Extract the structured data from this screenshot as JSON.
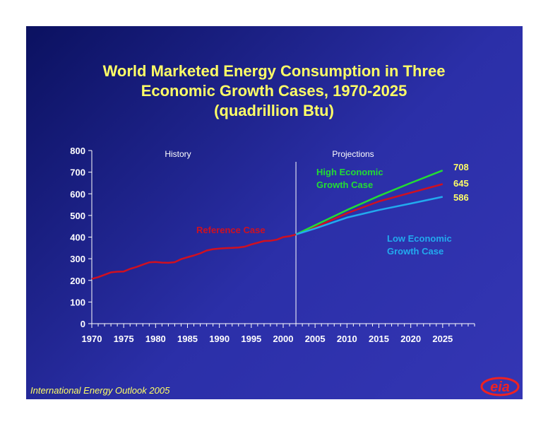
{
  "chart_data": {
    "type": "line",
    "title_lines": [
      "World Marketed Energy Consumption in Three",
      "Economic Growth Cases, 1970-2025",
      "(quadrillion Btu)"
    ],
    "xlabel": "",
    "ylabel": "",
    "xlim": [
      1970,
      2030
    ],
    "ylim": [
      0,
      800
    ],
    "x_ticks": [
      1970,
      1975,
      1980,
      1985,
      1990,
      1995,
      2000,
      2005,
      2010,
      2015,
      2020,
      2025
    ],
    "y_ticks": [
      0,
      100,
      200,
      300,
      400,
      500,
      600,
      700,
      800
    ],
    "grid": false,
    "divider_year": 2002,
    "region_labels": {
      "history": "History",
      "projections": "Projections"
    },
    "series": [
      {
        "name": "Reference Case",
        "color": "#d01020",
        "x": [
          1970,
          1971,
          1972,
          1973,
          1974,
          1975,
          1976,
          1977,
          1978,
          1979,
          1980,
          1981,
          1982,
          1983,
          1984,
          1985,
          1986,
          1987,
          1988,
          1989,
          1990,
          1991,
          1992,
          1993,
          1994,
          1995,
          1996,
          1997,
          1998,
          1999,
          2000,
          2001,
          2002,
          2005,
          2010,
          2015,
          2020,
          2025
        ],
        "values": [
          207,
          215,
          226,
          237,
          240,
          241,
          253,
          262,
          273,
          283,
          285,
          282,
          281,
          284,
          298,
          307,
          315,
          325,
          338,
          344,
          347,
          349,
          350,
          352,
          356,
          366,
          374,
          382,
          383,
          388,
          400,
          404,
          412,
          445,
          510,
          565,
          605,
          645
        ]
      },
      {
        "name": "High Economic Growth Case",
        "color": "#22dd33",
        "x": [
          2002,
          2005,
          2010,
          2015,
          2020,
          2025
        ],
        "values": [
          412,
          455,
          525,
          590,
          650,
          708
        ]
      },
      {
        "name": "Low Economic Growth Case",
        "color": "#22aaee",
        "x": [
          2002,
          2005,
          2010,
          2015,
          2020,
          2025
        ],
        "values": [
          412,
          440,
          490,
          525,
          555,
          586
        ]
      }
    ],
    "annotations": [
      {
        "series": "Reference Case",
        "lines": [
          "Reference Case"
        ],
        "color": "#d01020"
      },
      {
        "series": "High Economic Growth Case",
        "lines": [
          "High Economic",
          "Growth Case"
        ],
        "color": "#22dd33"
      },
      {
        "series": "Low Economic Growth Case",
        "lines": [
          "Low Economic",
          "Growth Case"
        ],
        "color": "#22aaee"
      }
    ],
    "end_labels": [
      "708",
      "645",
      "586"
    ]
  },
  "footer": "International Energy Outlook 2005",
  "logo_text": "eia",
  "colors": {
    "background": "#1e2290",
    "title": "#ffff66",
    "axis": "#ffffff"
  }
}
